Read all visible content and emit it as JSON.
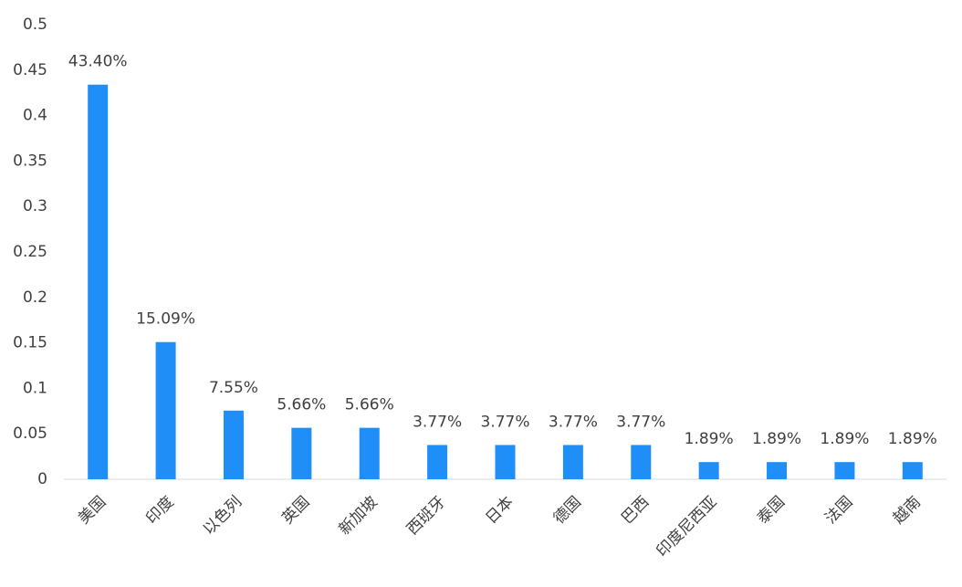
{
  "chart_data": {
    "type": "bar",
    "categories": [
      "美国",
      "印度",
      "以色列",
      "英国",
      "新加坡",
      "西班牙",
      "日本",
      "德国",
      "巴西",
      "印度尼西亚",
      "泰国",
      "法国",
      "越南"
    ],
    "values": [
      0.434,
      0.1509,
      0.0755,
      0.0566,
      0.0566,
      0.0377,
      0.0377,
      0.0377,
      0.0377,
      0.0189,
      0.0189,
      0.0189,
      0.0189
    ],
    "value_labels": [
      "43.40%",
      "15.09%",
      "7.55%",
      "5.66%",
      "5.66%",
      "3.77%",
      "3.77%",
      "3.77%",
      "3.77%",
      "1.89%",
      "1.89%",
      "1.89%",
      "1.89%"
    ],
    "color": "#1f8ff7",
    "ylim": [
      0,
      0.5
    ],
    "yticks": [
      0,
      0.05,
      0.1,
      0.15,
      0.2,
      0.25,
      0.3,
      0.35,
      0.4,
      0.45,
      0.5
    ],
    "grid": false
  }
}
